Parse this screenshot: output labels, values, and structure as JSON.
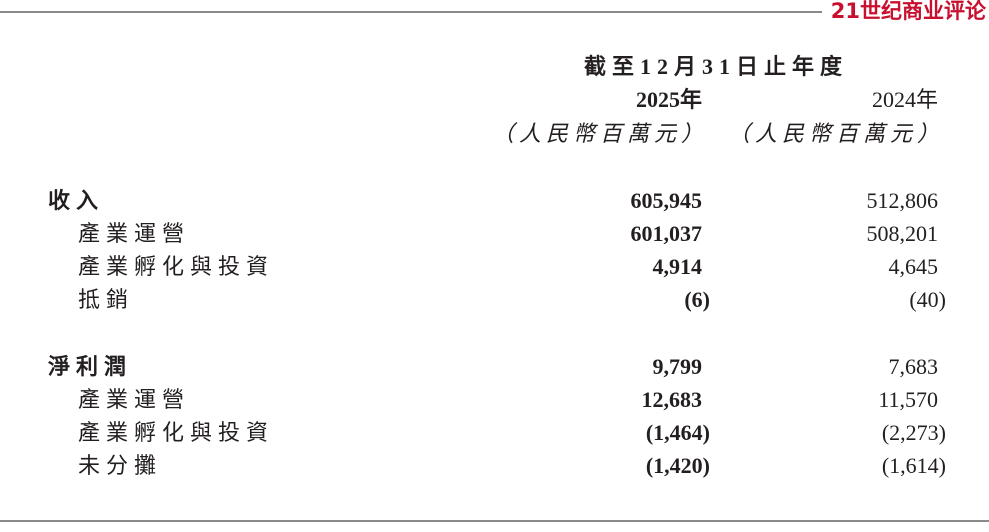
{
  "brand": "21世纪商业评论",
  "header": {
    "period": "截至12月31日止年度",
    "columns": [
      "2025年",
      "2024年"
    ],
    "units": [
      "（人民幣百萬元）",
      "（人民幣百萬元）"
    ]
  },
  "table": {
    "sections": [
      {
        "label": "收入",
        "values": [
          "605,945",
          "512,806"
        ],
        "rows": [
          {
            "label": "產業運營",
            "values": [
              "601,037",
              "508,201"
            ]
          },
          {
            "label": "產業孵化與投資",
            "values": [
              "4,914",
              "4,645"
            ]
          },
          {
            "label": "抵銷",
            "values": [
              "(6)",
              "(40)"
            ]
          }
        ]
      },
      {
        "label": "淨利潤",
        "values": [
          "9,799",
          "7,683"
        ],
        "rows": [
          {
            "label": "產業運營",
            "values": [
              "12,683",
              "11,570"
            ]
          },
          {
            "label": "產業孵化與投資",
            "values": [
              "(1,464)",
              "(2,273)"
            ]
          },
          {
            "label": "未分攤",
            "values": [
              "(1,420)",
              "(1,614)"
            ]
          }
        ]
      }
    ]
  }
}
